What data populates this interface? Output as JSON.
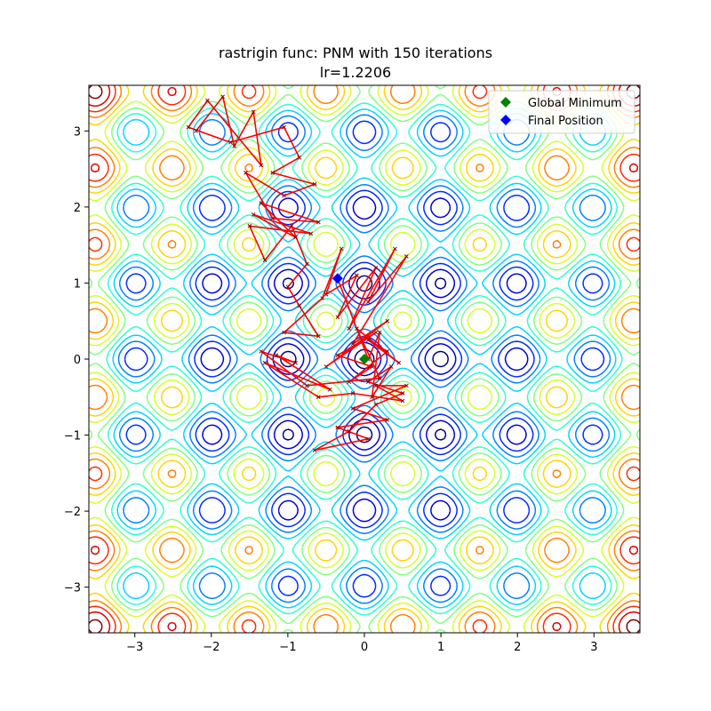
{
  "chart_data": {
    "type": "line",
    "title": "rastrigin func: PNM with 150 iterations",
    "subtitle": "lr=1.2206",
    "xlabel": "",
    "ylabel": "",
    "xlim": [
      -3.6,
      3.6
    ],
    "ylim": [
      -3.6,
      3.6
    ],
    "x_ticks": [
      "−3",
      "−2",
      "−1",
      "0",
      "1",
      "2",
      "3"
    ],
    "y_ticks": [
      "−3",
      "−2",
      "−1",
      "0",
      "1",
      "2",
      "3"
    ],
    "grid": false,
    "background": "contour plot of the Rastrigin function (jet colormap)",
    "legend": {
      "placement": "top-right",
      "entries": [
        {
          "label": "Global Minimum",
          "marker": "diamond",
          "color": "#008000"
        },
        {
          "label": "Final Position",
          "marker": "diamond",
          "color": "#0000ff"
        }
      ]
    },
    "global_minimum": {
      "x": 0.0,
      "y": 0.0
    },
    "final_position": {
      "x": -0.35,
      "y": 1.06
    },
    "path_color": "#ff0000",
    "path": [
      [
        -2.2,
        3.0
      ],
      [
        -1.85,
        3.45
      ],
      [
        -1.7,
        2.8
      ],
      [
        -1.45,
        3.25
      ],
      [
        -1.35,
        2.55
      ],
      [
        -2.05,
        3.4
      ],
      [
        -2.3,
        3.05
      ],
      [
        -1.75,
        2.85
      ],
      [
        -1.05,
        3.05
      ],
      [
        -0.85,
        2.65
      ],
      [
        -1.2,
        2.45
      ],
      [
        -0.65,
        2.3
      ],
      [
        -1.05,
        2.15
      ],
      [
        -1.55,
        2.45
      ],
      [
        -1.2,
        1.85
      ],
      [
        -0.6,
        1.8
      ],
      [
        -1.35,
        2.05
      ],
      [
        -0.9,
        1.6
      ],
      [
        -1.45,
        1.9
      ],
      [
        -0.7,
        1.65
      ],
      [
        -1.5,
        1.75
      ],
      [
        -1.3,
        1.3
      ],
      [
        -0.95,
        1.75
      ],
      [
        -0.75,
        1.25
      ],
      [
        -1.0,
        0.95
      ],
      [
        -0.85,
        0.7
      ],
      [
        -0.6,
        0.3
      ],
      [
        -1.05,
        0.35
      ],
      [
        -0.55,
        0.8
      ],
      [
        -0.3,
        1.45
      ],
      [
        -0.5,
        0.85
      ],
      [
        -0.1,
        1.1
      ],
      [
        -0.35,
        0.55
      ],
      [
        0.15,
        1.2
      ],
      [
        -0.2,
        0.4
      ],
      [
        0.4,
        1.45
      ],
      [
        0.05,
        0.75
      ],
      [
        0.55,
        1.35
      ],
      [
        -0.15,
        0.2
      ],
      [
        0.3,
        0.5
      ],
      [
        -0.5,
        -0.1
      ],
      [
        0.15,
        0.35
      ],
      [
        -0.35,
        0.05
      ],
      [
        0.1,
        -0.1
      ],
      [
        -0.2,
        -0.3
      ],
      [
        0.3,
        0.1
      ],
      [
        0.05,
        0.25
      ],
      [
        0.45,
        -0.05
      ],
      [
        -0.1,
        0.4
      ],
      [
        0.2,
        -0.25
      ],
      [
        -0.75,
        -0.35
      ],
      [
        -1.35,
        0.1
      ],
      [
        -0.9,
        -0.05
      ],
      [
        -1.15,
        0.05
      ],
      [
        -0.45,
        -0.4
      ],
      [
        -1.3,
        -0.05
      ],
      [
        -0.6,
        -0.5
      ],
      [
        -0.15,
        -0.45
      ],
      [
        0.5,
        -0.55
      ],
      [
        0.15,
        -0.35
      ],
      [
        0.55,
        -0.35
      ],
      [
        -0.15,
        -0.65
      ],
      [
        0.3,
        -0.8
      ],
      [
        -0.35,
        -0.9
      ],
      [
        0.05,
        -1.05
      ],
      [
        -0.65,
        -1.2
      ],
      [
        -0.2,
        -0.95
      ],
      [
        0.15,
        -0.6
      ],
      [
        0.5,
        -0.45
      ],
      [
        0.05,
        -0.3
      ],
      [
        0.35,
        -0.1
      ],
      [
        0.1,
        -0.5
      ],
      [
        0.2,
        0.35
      ],
      [
        0.05,
        0.0
      ],
      [
        -0.35,
        1.06
      ]
    ]
  }
}
